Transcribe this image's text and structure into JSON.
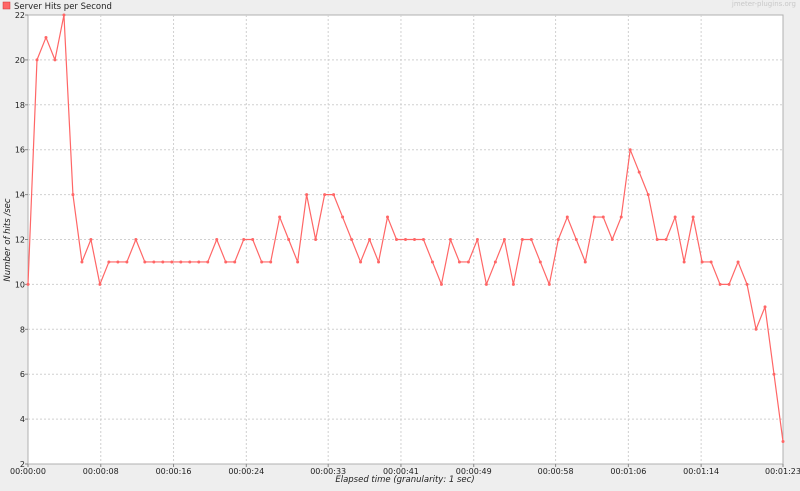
{
  "legend": {
    "label": "Server Hits per Second",
    "color": "#ff6666"
  },
  "watermark": "jmeter-plugins.org",
  "chart_data": {
    "type": "line",
    "title": "",
    "xlabel": "Elapsed time (granularity: 1 sec)",
    "ylabel": "Number of hits /sec",
    "ylim": [
      2,
      22
    ],
    "yticks": [
      2,
      4,
      6,
      8,
      10,
      12,
      14,
      16,
      18,
      20,
      22
    ],
    "xlim": [
      0,
      83
    ],
    "xticks": [
      {
        "t": 0,
        "label": "00:00:00"
      },
      {
        "t": 8,
        "label": "00:00:08"
      },
      {
        "t": 16,
        "label": "00:00:16"
      },
      {
        "t": 24,
        "label": "00:00:24"
      },
      {
        "t": 33,
        "label": "00:00:33"
      },
      {
        "t": 41,
        "label": "00:00:41"
      },
      {
        "t": 49,
        "label": "00:00:49"
      },
      {
        "t": 58,
        "label": "00:00:58"
      },
      {
        "t": 66,
        "label": "00:01:06"
      },
      {
        "t": 74,
        "label": "00:01:14"
      },
      {
        "t": 83,
        "label": "00:01:23"
      }
    ],
    "grid": true,
    "legend_position": "top-left",
    "series": [
      {
        "name": "Server Hits per Second",
        "color": "#ff6666",
        "values": [
          10,
          20,
          21,
          20,
          22,
          14,
          11,
          12,
          10,
          11,
          11,
          11,
          12,
          11,
          11,
          11,
          11,
          11,
          11,
          11,
          11,
          12,
          11,
          11,
          12,
          12,
          11,
          11,
          13,
          12,
          11,
          14,
          12,
          14,
          14,
          13,
          12,
          11,
          12,
          11,
          13,
          12,
          12,
          12,
          12,
          11,
          10,
          12,
          11,
          11,
          12,
          10,
          11,
          12,
          10,
          12,
          12,
          11,
          10,
          12,
          13,
          12,
          11,
          13,
          13,
          12,
          13,
          16,
          15,
          14,
          12,
          12,
          13,
          11,
          13,
          11,
          11,
          10,
          10,
          11,
          10,
          8,
          9,
          6,
          3
        ]
      }
    ]
  }
}
